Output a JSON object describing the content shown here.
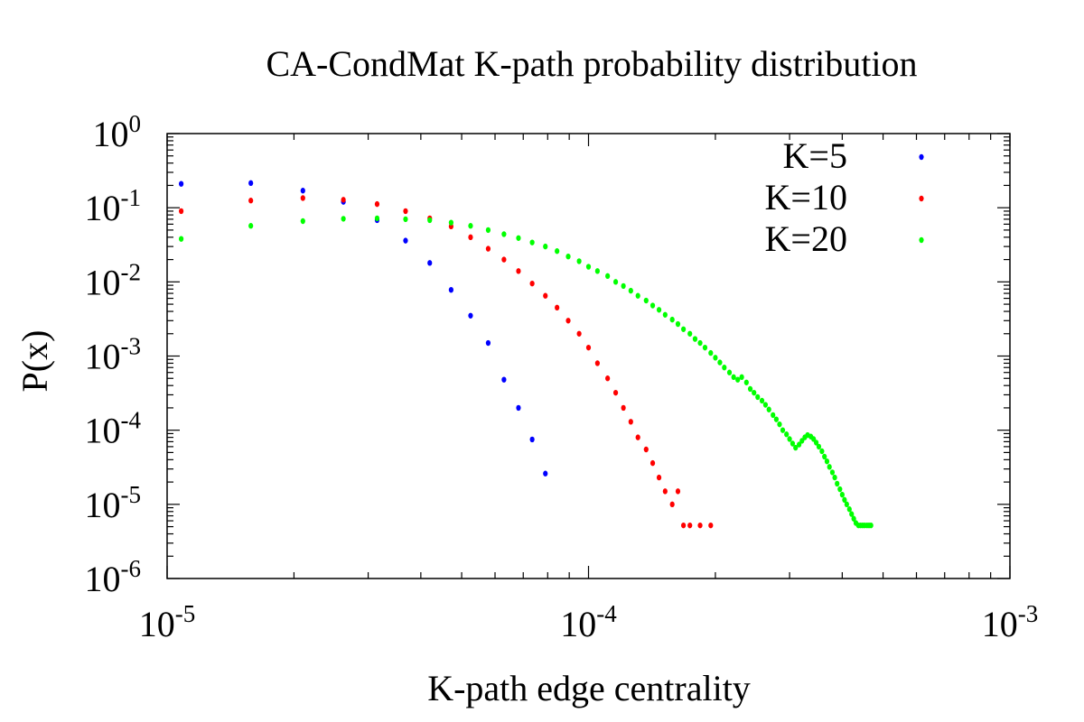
{
  "chart_data": {
    "type": "scatter",
    "title": "CA-CondMat K-path probability distribution",
    "xlabel": "K-path edge centrality",
    "ylabel": "P(x)",
    "xscale": "log",
    "yscale": "log",
    "xlim": [
      1e-05,
      0.001
    ],
    "ylim": [
      1e-06,
      1
    ],
    "x_ticks": [
      {
        "value": 1e-05,
        "base": "10",
        "exp": "-5"
      },
      {
        "value": 0.0001,
        "base": "10",
        "exp": "-4"
      },
      {
        "value": 0.001,
        "base": "10",
        "exp": "-3"
      }
    ],
    "y_ticks": [
      {
        "value": 1e-06,
        "base": "10",
        "exp": "-6"
      },
      {
        "value": 1e-05,
        "base": "10",
        "exp": "-5"
      },
      {
        "value": 0.0001,
        "base": "10",
        "exp": "-4"
      },
      {
        "value": 0.001,
        "base": "10",
        "exp": "-3"
      },
      {
        "value": 0.01,
        "base": "10",
        "exp": "-2"
      },
      {
        "value": 0.1,
        "base": "10",
        "exp": "-1"
      },
      {
        "value": 1,
        "base": "10",
        "exp": "0"
      }
    ],
    "legend_position": "top-right",
    "series": [
      {
        "name": "K=5",
        "color": "#0000ff",
        "x": [
          1.08e-05,
          1.58e-05,
          2.1e-05,
          2.62e-05,
          3.15e-05,
          3.68e-05,
          4.2e-05,
          4.72e-05,
          5.25e-05,
          5.78e-05,
          6.3e-05,
          6.82e-05,
          7.35e-05,
          7.9e-05
        ],
        "y": [
          0.21,
          0.215,
          0.17,
          0.12,
          0.068,
          0.036,
          0.018,
          0.0078,
          0.0035,
          0.0015,
          0.00048,
          0.0002,
          7.5e-05,
          2.6e-05
        ]
      },
      {
        "name": "K=10",
        "color": "#ff0000",
        "x": [
          1.08e-05,
          1.58e-05,
          2.1e-05,
          2.62e-05,
          3.15e-05,
          3.68e-05,
          4.2e-05,
          4.72e-05,
          5.25e-05,
          5.78e-05,
          6.3e-05,
          6.82e-05,
          7.35e-05,
          7.9e-05,
          8.42e-05,
          8.95e-05,
          9.5e-05,
          0.0001,
          0.000105,
          0.000111,
          0.000116,
          0.000121,
          0.000126,
          0.000131,
          0.000137,
          0.000142,
          0.000147,
          0.000152,
          0.000158,
          0.000163,
          0.000168,
          0.000174,
          0.000184,
          0.000195
        ],
        "y": [
          0.09,
          0.125,
          0.135,
          0.128,
          0.112,
          0.09,
          0.072,
          0.056,
          0.04,
          0.028,
          0.02,
          0.014,
          0.0095,
          0.0065,
          0.0045,
          0.003,
          0.002,
          0.0013,
          0.0008,
          0.0005,
          0.00032,
          0.0002,
          0.00013,
          8e-05,
          5.5e-05,
          3.6e-05,
          2.3e-05,
          1.5e-05,
          1e-05,
          1.5e-05,
          5.2e-06,
          5.2e-06,
          5.2e-06,
          5.2e-06
        ],
        "note": "K=10 tail at 1.5e-05 is near x=0.000158; clustered points at y=5.2e-06"
      },
      {
        "name": "K=20",
        "color": "#00ff00",
        "x": [
          1.08e-05,
          1.58e-05,
          2.1e-05,
          2.62e-05,
          3.15e-05,
          3.68e-05,
          4.2e-05,
          4.72e-05,
          5.25e-05,
          5.78e-05,
          6.3e-05,
          6.82e-05,
          7.35e-05,
          7.9e-05,
          8.42e-05,
          8.95e-05,
          9.5e-05,
          0.0001,
          0.000105,
          0.000111,
          0.000116,
          0.000121,
          0.000126,
          0.000131,
          0.000137,
          0.000142,
          0.000147,
          0.000152,
          0.000158,
          0.000163,
          0.000168,
          0.000174,
          0.000179,
          0.000184,
          0.000189,
          0.000195,
          0.0002,
          0.000205,
          0.00021,
          0.000216,
          0.000221,
          0.000226,
          0.000231,
          0.000237,
          0.000242,
          0.000247,
          0.000252,
          0.000258,
          0.000263,
          0.000268,
          0.000274,
          0.000279,
          0.000284,
          0.000289,
          0.000295,
          0.0003,
          0.000305,
          0.00031,
          0.000316,
          0.000321,
          0.000326,
          0.000331,
          0.000337,
          0.000342,
          0.000347,
          0.000352,
          0.000358,
          0.000363,
          0.000368,
          0.000373,
          0.000379,
          0.000384,
          0.000389,
          0.000395,
          0.0004,
          0.000405,
          0.00041,
          0.000416,
          0.000421,
          0.000426,
          0.000431,
          0.000437,
          0.000442,
          0.000447,
          0.000452,
          0.000458,
          0.000463,
          0.000468
        ],
        "y": [
          0.038,
          0.057,
          0.066,
          0.071,
          0.072,
          0.07,
          0.068,
          0.063,
          0.057,
          0.05,
          0.044,
          0.039,
          0.034,
          0.03,
          0.026,
          0.022,
          0.019,
          0.016,
          0.014,
          0.012,
          0.01,
          0.0088,
          0.0076,
          0.0065,
          0.0056,
          0.0048,
          0.0042,
          0.0036,
          0.0031,
          0.0027,
          0.0023,
          0.002,
          0.0017,
          0.0015,
          0.0013,
          0.0011,
          0.00095,
          0.00082,
          0.0007,
          0.0006,
          0.00052,
          0.00048,
          0.00052,
          0.00044,
          0.00036,
          0.00032,
          0.00028,
          0.00025,
          0.00022,
          0.00019,
          0.00016,
          0.00014,
          0.00012,
          0.0001,
          8.8e-05,
          7.6e-05,
          6.6e-05,
          5.8e-05,
          6.4e-05,
          7.2e-05,
          8e-05,
          8.6e-05,
          8.2e-05,
          7.6e-05,
          6.8e-05,
          6e-05,
          5.2e-05,
          4.4e-05,
          3.8e-05,
          3.2e-05,
          2.7e-05,
          2.3e-05,
          1.9e-05,
          1.6e-05,
          1.35e-05,
          1.15e-05,
          1e-05,
          8.6e-06,
          7.4e-06,
          6.4e-06,
          5.6e-06,
          5.2e-06,
          5.2e-06,
          5.2e-06,
          5.2e-06,
          5.2e-06,
          5.2e-06,
          5.2e-06
        ]
      }
    ]
  }
}
